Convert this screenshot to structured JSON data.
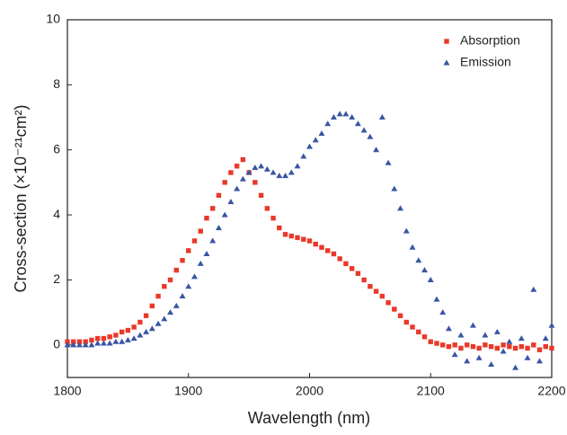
{
  "chart_data": {
    "type": "scatter",
    "xlabel": "Wavelength (nm)",
    "ylabel": "Cross-section (×10⁻²¹cm²)",
    "xlim": [
      1800,
      2200
    ],
    "xticks": [
      1800,
      1900,
      2000,
      2100,
      2200
    ],
    "ylim": [
      -1,
      10
    ],
    "yticks": [
      0,
      2,
      4,
      6,
      8,
      10
    ],
    "legend": "upper right",
    "x": [
      1800,
      1805,
      1810,
      1815,
      1820,
      1825,
      1830,
      1835,
      1840,
      1845,
      1850,
      1855,
      1860,
      1865,
      1870,
      1875,
      1880,
      1885,
      1890,
      1895,
      1900,
      1905,
      1910,
      1915,
      1920,
      1925,
      1930,
      1935,
      1940,
      1945,
      1950,
      1955,
      1960,
      1965,
      1970,
      1975,
      1980,
      1985,
      1990,
      1995,
      2000,
      2005,
      2010,
      2015,
      2020,
      2025,
      2030,
      2035,
      2040,
      2045,
      2050,
      2055,
      2060,
      2065,
      2070,
      2075,
      2080,
      2085,
      2090,
      2095,
      2100,
      2105,
      2110,
      2115,
      2120,
      2125,
      2130,
      2135,
      2140,
      2145,
      2150,
      2155,
      2160,
      2165,
      2170,
      2175,
      2180,
      2185,
      2190,
      2195,
      2200
    ],
    "series": [
      {
        "name": "Absorption",
        "color": "#e8392a",
        "marker": "square",
        "values": [
          0.1,
          0.1,
          0.1,
          0.1,
          0.15,
          0.2,
          0.2,
          0.25,
          0.3,
          0.4,
          0.45,
          0.55,
          0.7,
          0.9,
          1.2,
          1.5,
          1.8,
          2.0,
          2.3,
          2.6,
          2.9,
          3.2,
          3.5,
          3.9,
          4.2,
          4.6,
          5.0,
          5.3,
          5.5,
          5.7,
          5.3,
          5.0,
          4.6,
          4.2,
          3.9,
          3.6,
          3.4,
          3.35,
          3.3,
          3.25,
          3.2,
          3.1,
          3.0,
          2.9,
          2.8,
          2.65,
          2.5,
          2.35,
          2.2,
          2.0,
          1.8,
          1.65,
          1.5,
          1.3,
          1.1,
          0.9,
          0.7,
          0.55,
          0.4,
          0.25,
          0.1,
          0.05,
          0.0,
          -0.05,
          0.0,
          -0.1,
          0.0,
          -0.05,
          -0.1,
          0.0,
          -0.05,
          -0.1,
          0.0,
          -0.05,
          -0.1,
          -0.05,
          -0.1,
          0.0,
          -0.15,
          -0.05,
          -0.1
        ]
      },
      {
        "name": "Emission",
        "color": "#3a55a4",
        "marker": "triangle",
        "values": [
          0.0,
          0.0,
          0.0,
          0.0,
          0.0,
          0.05,
          0.05,
          0.05,
          0.1,
          0.1,
          0.15,
          0.2,
          0.3,
          0.4,
          0.5,
          0.65,
          0.8,
          1.0,
          1.2,
          1.5,
          1.8,
          2.1,
          2.5,
          2.8,
          3.2,
          3.6,
          4.0,
          4.4,
          4.8,
          5.1,
          5.3,
          5.45,
          5.5,
          5.4,
          5.3,
          5.2,
          5.2,
          5.3,
          5.5,
          5.8,
          6.1,
          6.3,
          6.5,
          6.8,
          7.0,
          7.1,
          7.1,
          7.0,
          6.8,
          6.6,
          6.4,
          6.0,
          7.0,
          5.6,
          4.8,
          4.2,
          3.5,
          3.0,
          2.6,
          2.3,
          2.0,
          1.4,
          1.0,
          0.5,
          -0.3,
          0.3,
          -0.5,
          0.6,
          -0.4,
          0.3,
          -0.6,
          0.4,
          -0.2,
          0.1,
          -0.7,
          0.2,
          -0.4,
          1.7,
          -0.5,
          0.2,
          0.6
        ]
      }
    ]
  }
}
